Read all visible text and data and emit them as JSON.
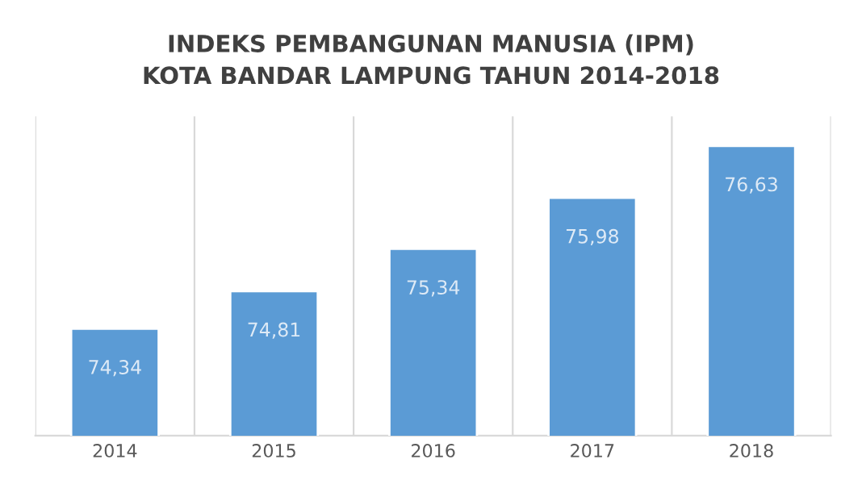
{
  "chart_data": {
    "type": "bar",
    "title": "INDEKS PEMBANGUNAN MANUSIA (IPM)\nKOTA BANDAR LAMPUNG TAHUN 2014-2018",
    "categories": [
      "2014",
      "2015",
      "2016",
      "2017",
      "2018"
    ],
    "values": [
      74.34,
      74.81,
      75.34,
      75.98,
      76.63
    ],
    "value_labels": [
      "74,34",
      "74,81",
      "75,34",
      "75,98",
      "76,63"
    ],
    "color": "#5b9bd5",
    "ylim": [
      73,
      77
    ],
    "tick_labels": "x",
    "grid": "x"
  }
}
